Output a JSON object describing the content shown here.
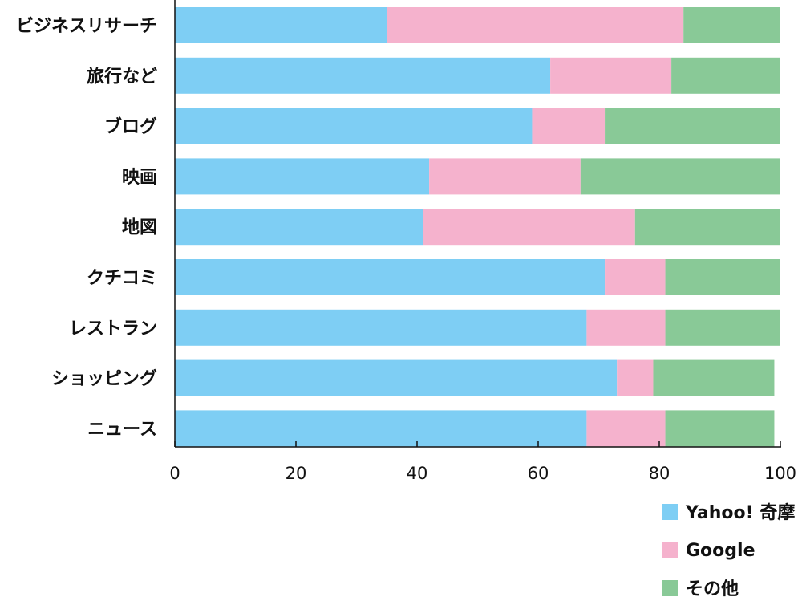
{
  "chart_data": {
    "type": "bar",
    "orientation": "horizontal",
    "stacked": true,
    "title": "",
    "xlabel": "",
    "ylabel": "",
    "xlim": [
      0,
      100
    ],
    "xticks": [
      "0",
      "20",
      "40",
      "60",
      "80",
      "100"
    ],
    "grid": false,
    "legend_position": "bottom-right",
    "categories": [
      "ビジネスリサーチ",
      "旅行など",
      "ブログ",
      "映画",
      "地図",
      "クチコミ",
      "レストラン",
      "ショッピング",
      "ニュース"
    ],
    "series": [
      {
        "name": "Yahoo! 奇摩",
        "color": "#7ecef4",
        "values": [
          35,
          62,
          59,
          42,
          41,
          71,
          68,
          73,
          68
        ]
      },
      {
        "name": "Google",
        "color": "#f5b2cd",
        "values": [
          49,
          20,
          12,
          25,
          35,
          10,
          13,
          6,
          13
        ]
      },
      {
        "name": "その他",
        "color": "#89c997",
        "values": [
          16,
          18,
          29,
          33,
          24,
          19,
          19,
          20,
          18
        ]
      }
    ]
  }
}
